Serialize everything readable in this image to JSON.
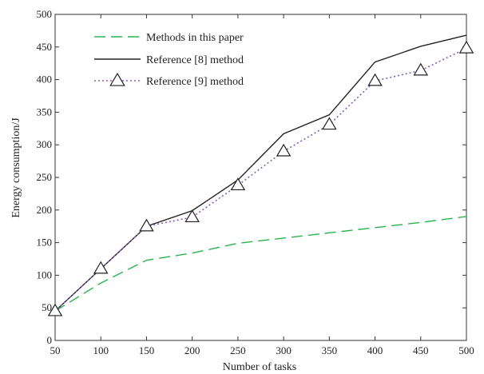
{
  "chart_data": {
    "type": "line",
    "title": "",
    "xlabel": "Number of tasks",
    "ylabel": "Energy consumption/J",
    "x": [
      50,
      100,
      150,
      200,
      250,
      300,
      350,
      400,
      450,
      500
    ],
    "xlim": [
      50,
      500
    ],
    "ylim": [
      0,
      500
    ],
    "xticks": [
      50,
      100,
      150,
      200,
      250,
      300,
      350,
      400,
      450,
      500
    ],
    "yticks": [
      0,
      50,
      100,
      150,
      200,
      250,
      300,
      350,
      400,
      450,
      500
    ],
    "grid": false,
    "legend_position": "top-left",
    "series": [
      {
        "name": "Methods in this paper",
        "values": [
          45,
          88,
          123,
          134,
          149,
          157,
          165,
          173,
          181,
          190
        ],
        "color": "#2bb24c",
        "line_style": "dashed",
        "marker": "none"
      },
      {
        "name": "Reference [8] method",
        "values": [
          45,
          110,
          175,
          199,
          246,
          317,
          346,
          427,
          451,
          468
        ],
        "color": "#222222",
        "line_style": "solid",
        "marker": "none"
      },
      {
        "name": "Reference [9] method",
        "values": [
          45,
          110,
          175,
          189,
          238,
          290,
          331,
          398,
          414,
          448
        ],
        "color": "#8a5bb6",
        "line_style": "dotted",
        "marker": "triangle"
      }
    ]
  }
}
